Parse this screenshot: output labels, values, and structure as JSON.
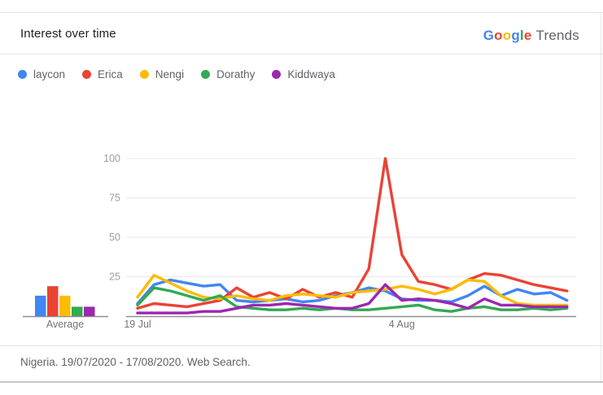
{
  "header": {
    "title": "Interest over time",
    "logo": {
      "letters": [
        {
          "ch": "G",
          "color": "#4285F4"
        },
        {
          "ch": "o",
          "color": "#EA4335"
        },
        {
          "ch": "o",
          "color": "#FBBC05"
        },
        {
          "ch": "g",
          "color": "#4285F4"
        },
        {
          "ch": "l",
          "color": "#34A853"
        },
        {
          "ch": "e",
          "color": "#EA4335"
        }
      ],
      "product": "Trends",
      "product_color": "#5F6368"
    }
  },
  "chart_data": [
    {
      "type": "line",
      "title": "Interest over time",
      "xlabel": "",
      "ylabel": "",
      "ylim": [
        0,
        100
      ],
      "grid": true,
      "legend_position": "top-left",
      "x_ticks": [
        {
          "label": "19 Jul",
          "index": 0
        },
        {
          "label": "4 Aug",
          "index": 16
        }
      ],
      "y_ticks": [
        100,
        75,
        50,
        25
      ],
      "points_per_series": 27,
      "series": [
        {
          "name": "laycon",
          "color": "#4285F4",
          "values": [
            8,
            20,
            23,
            21,
            19,
            20,
            10,
            9,
            10,
            11,
            9,
            10,
            13,
            15,
            18,
            16,
            11,
            10,
            10,
            9,
            13,
            19,
            13,
            17,
            14,
            15,
            10
          ]
        },
        {
          "name": "Erica",
          "color": "#EA4335",
          "values": [
            5,
            8,
            7,
            6,
            8,
            10,
            18,
            12,
            15,
            11,
            17,
            12,
            15,
            12,
            30,
            100,
            39,
            22,
            20,
            17,
            23,
            27,
            26,
            23,
            20,
            18,
            16
          ]
        },
        {
          "name": "Nengi",
          "color": "#FBBC04",
          "values": [
            12,
            26,
            21,
            16,
            12,
            11,
            13,
            11,
            10,
            13,
            14,
            13,
            12,
            15,
            16,
            17,
            19,
            17,
            14,
            17,
            23,
            22,
            13,
            8,
            7,
            7,
            7
          ]
        },
        {
          "name": "Dorathy",
          "color": "#34A853",
          "values": [
            7,
            18,
            16,
            13,
            10,
            13,
            6,
            5,
            4,
            4,
            5,
            4,
            5,
            4,
            4,
            5,
            6,
            7,
            4,
            3,
            5,
            6,
            4,
            4,
            5,
            4,
            5
          ]
        },
        {
          "name": "Kiddwaya",
          "color": "#9C27B0",
          "values": [
            2,
            2,
            2,
            2,
            3,
            3,
            5,
            7,
            7,
            8,
            7,
            6,
            5,
            5,
            8,
            20,
            10,
            11,
            10,
            8,
            5,
            11,
            7,
            7,
            6,
            6,
            6
          ]
        }
      ]
    },
    {
      "type": "bar",
      "title": "Average",
      "xlabel": "Average",
      "ylim": [
        0,
        100
      ],
      "categories": [
        "laycon",
        "Erica",
        "Nengi",
        "Dorathy",
        "Kiddwaya"
      ],
      "values": [
        13,
        19,
        13,
        6,
        6
      ],
      "colors": [
        "#4285F4",
        "#EA4335",
        "#FBBC04",
        "#34A853",
        "#9C27B0"
      ]
    }
  ],
  "axis_colors": {
    "gridline": "#e8e8e8",
    "axis_line": "#8f8f8f",
    "y_tick_label": "#9aa0a6",
    "x_tick_label": "#757575"
  },
  "footer": {
    "text": "Nigeria. 19/07/2020 - 17/08/2020. Web Search."
  }
}
